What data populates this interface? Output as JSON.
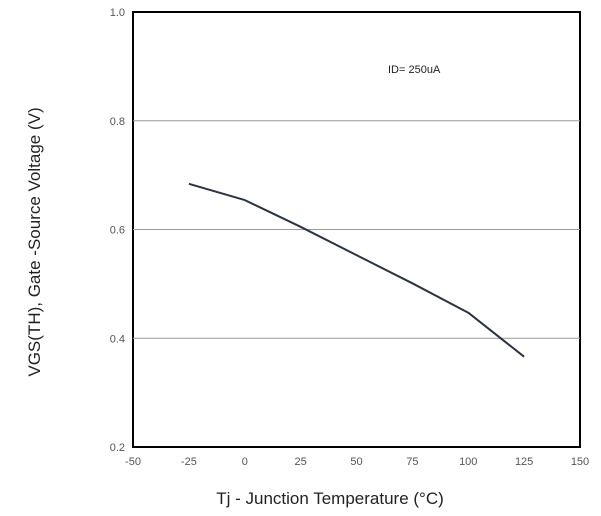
{
  "chart_data": {
    "type": "line",
    "title": "",
    "xlabel": "Tj - Junction Temperature (°C)",
    "ylabel": "VGS(TH), Gate -Source Voltage (V)",
    "xlim": [
      -50,
      150
    ],
    "ylim": [
      0.2,
      1.0
    ],
    "xticks": [
      "-50",
      "-25",
      "0",
      "25",
      "50",
      "75",
      "100",
      "125",
      "150"
    ],
    "xtick_values": [
      -50,
      -25,
      0,
      25,
      50,
      75,
      100,
      125,
      150
    ],
    "yticks": [
      "0.2",
      "0.4",
      "0.6",
      "0.8",
      "1.0"
    ],
    "ytick_values": [
      0.2,
      0.4,
      0.6,
      0.8,
      1.0
    ],
    "grid": "horizontal",
    "annotation": "ID= 250uA",
    "series": [
      {
        "color": "#2a3440",
        "x": [
          -25,
          0,
          25,
          50,
          75,
          100,
          125
        ],
        "y": [
          0.684,
          0.654,
          0.605,
          0.553,
          0.501,
          0.447,
          0.366
        ]
      }
    ]
  }
}
